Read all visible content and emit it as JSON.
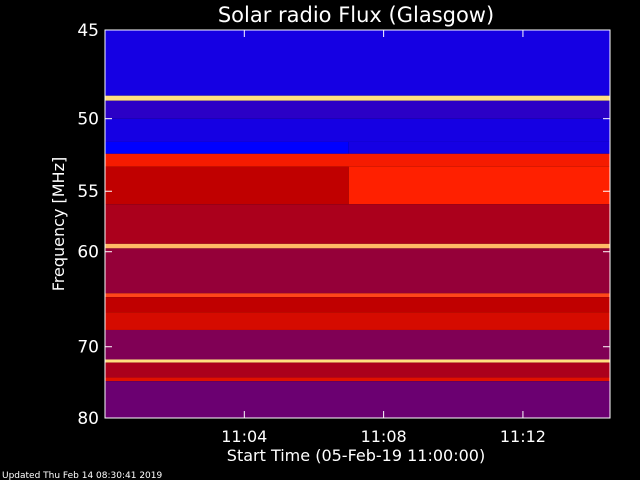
{
  "chart_data": {
    "type": "heatmap",
    "title": "Solar radio Flux (Glasgow)",
    "xlabel": "Start Time (05-Feb-19 11:00:00)",
    "ylabel": "Frequency [MHz]",
    "x_ticks": [
      "11:04",
      "11:08",
      "11:12"
    ],
    "x_tick_minutes": [
      4,
      8,
      12
    ],
    "xlim_minutes": [
      0,
      14.5
    ],
    "y_ticks": [
      45,
      50,
      55,
      60,
      70,
      80
    ],
    "ylim": [
      80,
      45
    ],
    "y_scale": "reciprocal",
    "bands": [
      {
        "f0": 45.0,
        "f1": 48.6,
        "level": 0.05
      },
      {
        "f0": 48.6,
        "f1": 48.9,
        "level": 1.0
      },
      {
        "f0": 48.9,
        "f1": 50.0,
        "level": 0.1
      },
      {
        "f0": 50.0,
        "f1": 51.5,
        "level": 0.05
      },
      {
        "f0": 51.5,
        "f1": 52.3,
        "level": 0.0,
        "after_minute": 7,
        "level_after": 0.05
      },
      {
        "f0": 52.3,
        "f1": 53.2,
        "level": 0.7
      },
      {
        "f0": 53.2,
        "f1": 56.0,
        "level": 0.45,
        "after_minute": 7,
        "level_after": 0.75
      },
      {
        "f0": 56.0,
        "f1": 59.3,
        "level": 0.4
      },
      {
        "f0": 59.3,
        "f1": 59.7,
        "level": 0.95
      },
      {
        "f0": 59.7,
        "f1": 64.0,
        "level": 0.35
      },
      {
        "f0": 64.0,
        "f1": 64.4,
        "level": 0.8
      },
      {
        "f0": 64.4,
        "f1": 66.0,
        "level": 0.45
      },
      {
        "f0": 66.0,
        "f1": 68.0,
        "level": 0.55
      },
      {
        "f0": 68.0,
        "f1": 71.6,
        "level": 0.3
      },
      {
        "f0": 71.6,
        "f1": 72.0,
        "level": 1.0
      },
      {
        "f0": 72.0,
        "f1": 74.0,
        "level": 0.4
      },
      {
        "f0": 74.0,
        "f1": 74.5,
        "level": 0.6
      },
      {
        "f0": 74.5,
        "f1": 80.0,
        "level": 0.25
      }
    ],
    "colors": {
      "low": "#0000ff",
      "mid": "#c00000",
      "high": "#ff2000",
      "peak": "#ffe080"
    }
  },
  "footer": {
    "updated": "Updated Thu Feb 14 08:30:41 2019"
  }
}
